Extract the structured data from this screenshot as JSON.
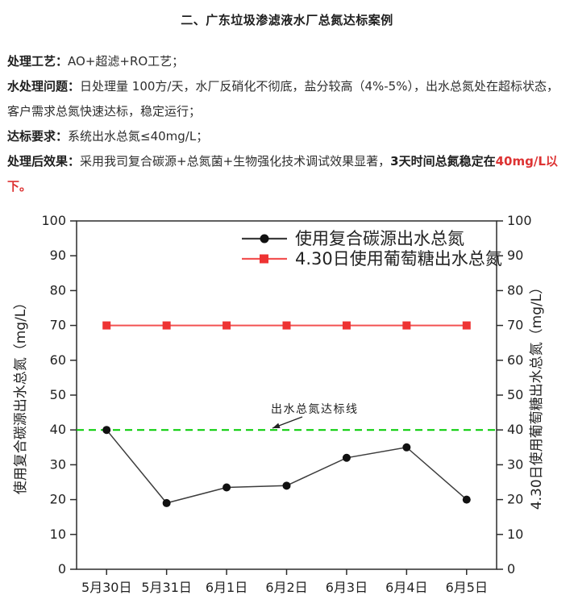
{
  "content": {
    "title": "二、广东垃圾渗滤液水厂总氮达标案例",
    "paragraphs": [
      {
        "label": "处理工艺：",
        "text": "AO+超滤+RO工艺；"
      },
      {
        "label": "水处理问题：",
        "text": "日处理量 100方/天，水厂反硝化不彻底，盐分较高（4%-5%），出水总氮处在超标状态，客户需求总氮快速达标，稳定运行；"
      },
      {
        "label": "达标要求：",
        "text": "系统出水总氮≤40mg/L；"
      },
      {
        "label": "处理后效果：",
        "text": "采用我司复合碳源+总氮菌+生物强化技术调试效果显著，",
        "emphasis": "3天时间总氮稳定在",
        "highlight": "40mg/L以下。"
      }
    ]
  },
  "colors": {
    "body_text": "#2e2e2e",
    "highlight_red": "#dd3333",
    "axis": "#2b2b2b",
    "series_black_line": "#3c3c3c",
    "series_black_marker": "#111111",
    "series_red_line": "#f25252",
    "series_red_marker": "#ee3333",
    "target_green": "#00cc00"
  },
  "chart_data": {
    "type": "line",
    "categories": [
      "5月30日",
      "5月31日",
      "6月1日",
      "6月2日",
      "6月3日",
      "6月4日",
      "6月5日"
    ],
    "series": [
      {
        "name": "使用复合碳源出水总氮",
        "marker": "circle",
        "marker_color": "#111111",
        "line_color": "#3c3c3c",
        "values": [
          40,
          19,
          23.5,
          24,
          32,
          35,
          20
        ]
      },
      {
        "name": "4.30日使用葡萄糖出水总氮",
        "marker": "square",
        "marker_color": "#ee3333",
        "line_color": "#f25252",
        "values": [
          70,
          70,
          70,
          70,
          70,
          70,
          70
        ]
      }
    ],
    "ylabel_left": "使用复合碳源出水总氮（mg/L）",
    "ylabel_right": "4.30日使用葡萄糖出水总氮（mg/L）",
    "ylim": [
      0,
      100
    ],
    "ytick_step": 10,
    "grid": false,
    "legend_position": "top-center-inside",
    "reference_line": {
      "value": 40,
      "label": "出水总氮达标线",
      "color": "#00cc00",
      "style": "dashed"
    }
  }
}
